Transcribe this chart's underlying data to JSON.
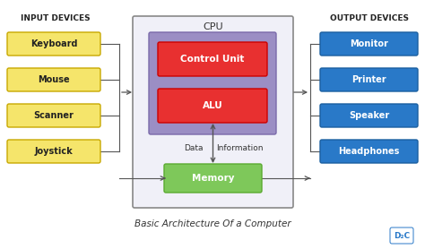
{
  "title": "Basic Architecture Of a Computer",
  "input_label": "INPUT DEVICES",
  "output_label": "OUTPUT DEVICES",
  "cpu_label": "CPU",
  "input_devices": [
    "Keyboard",
    "Mouse",
    "Scanner",
    "Joystick"
  ],
  "output_devices": [
    "Monitor",
    "Printer",
    "Speaker",
    "Headphones"
  ],
  "cpu_components": [
    "Control Unit",
    "ALU"
  ],
  "memory_label": "Memory",
  "data_label": "Data",
  "info_label": "Information",
  "bg_color": "#ffffff",
  "input_box_color": "#f5e56b",
  "input_box_edge": "#c8a800",
  "output_box_color": "#2979c8",
  "output_box_edge": "#1a5fa0",
  "cpu_outer_color": "#f0f0f8",
  "cpu_outer_edge": "#888888",
  "cpu_inner_color": "#9b8ec4",
  "cpu_inner_edge": "#7a6aaa",
  "cu_color": "#e83030",
  "alu_color": "#e83030",
  "memory_color": "#7ec85a",
  "memory_edge": "#5aaa30",
  "arrow_color": "#555555",
  "text_color": "#333333",
  "label_color": "#222222"
}
